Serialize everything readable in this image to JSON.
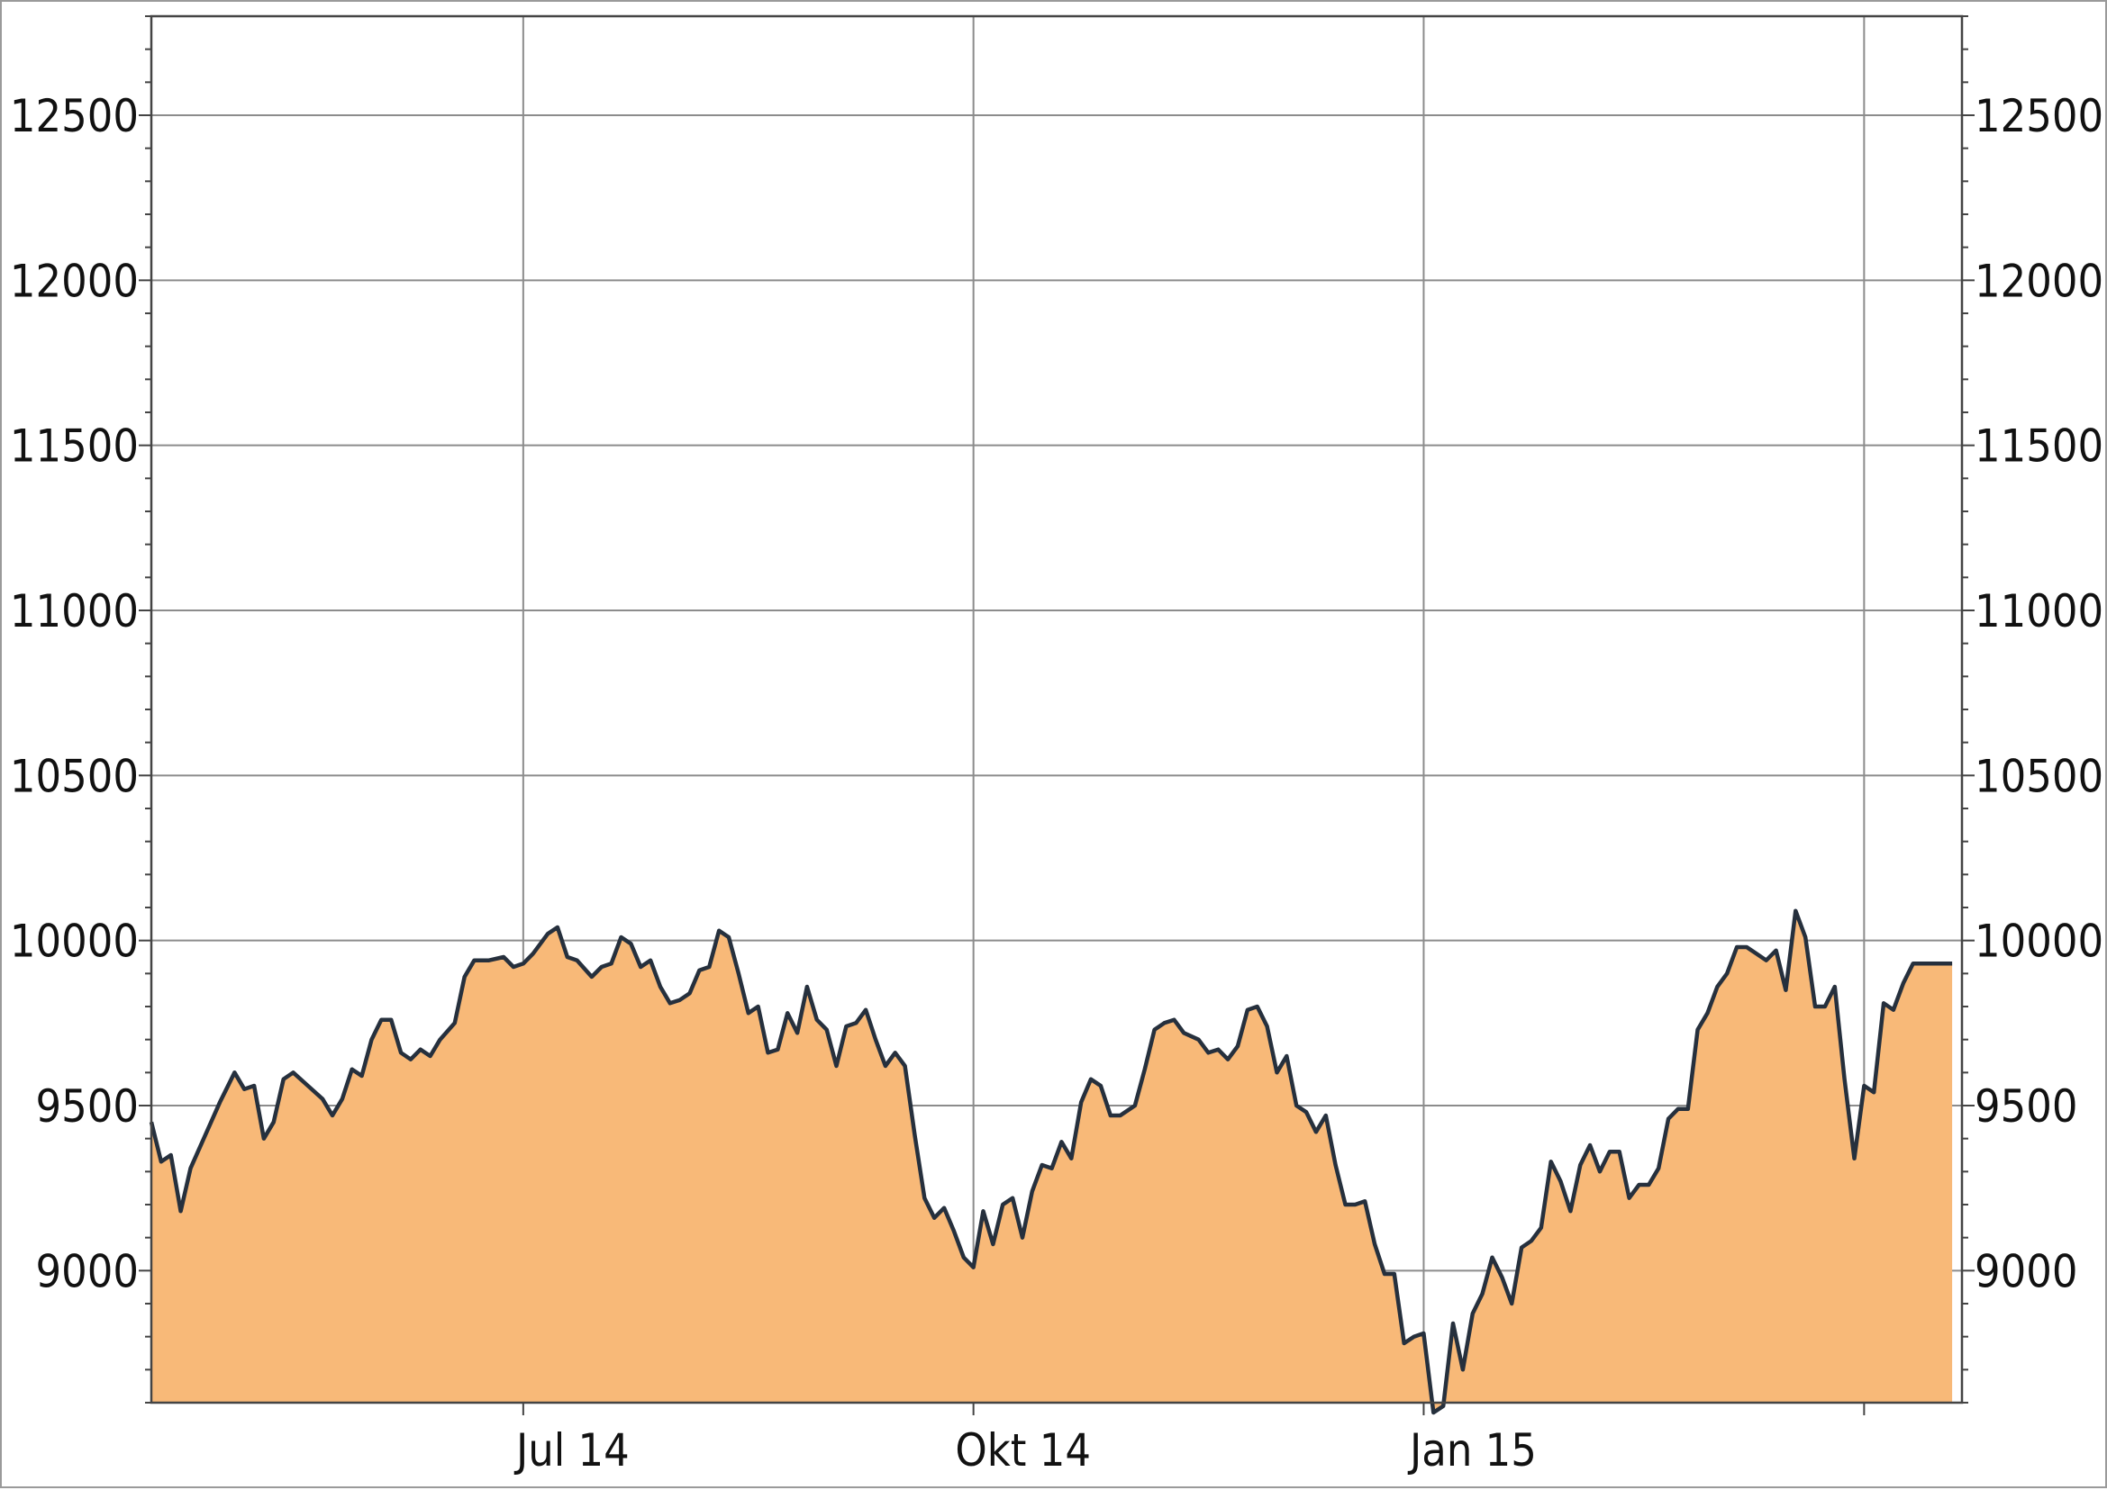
{
  "chart_data": {
    "type": "area",
    "title": "",
    "xlabel": "",
    "ylabel": "",
    "ylim": [
      8600,
      12800
    ],
    "y_ticks": [
      9000,
      9500,
      10000,
      10500,
      11000,
      11500,
      12000,
      12500
    ],
    "y_tick_labels": [
      "9000",
      "9500",
      "10000",
      "10500",
      "11000",
      "11500",
      "12000",
      "12500"
    ],
    "x_ticks": [
      {
        "date": "2014-07-01",
        "label": "Jul 14"
      },
      {
        "date": "2014-10-01",
        "label": "Okt 14"
      },
      {
        "date": "2015-01-01",
        "label": "Jan 15"
      },
      {
        "date": "2015-04-01",
        "label": ""
      }
    ],
    "xlim": [
      "2014-04-16",
      "2015-04-21"
    ],
    "grid": true,
    "colors": {
      "fill": "#f8b978",
      "line": "#26303d",
      "grid": "#8c8c8c",
      "axis": "#444444"
    },
    "series": [
      {
        "points": [
          [
            "2014-04-16",
            9450
          ],
          [
            "2014-04-18",
            9330
          ],
          [
            "2014-04-20",
            9350
          ],
          [
            "2014-04-22",
            9180
          ],
          [
            "2014-04-24",
            9310
          ],
          [
            "2014-04-27",
            9410
          ],
          [
            "2014-04-30",
            9510
          ],
          [
            "2014-05-03",
            9600
          ],
          [
            "2014-05-05",
            9550
          ],
          [
            "2014-05-07",
            9560
          ],
          [
            "2014-05-09",
            9400
          ],
          [
            "2014-05-11",
            9450
          ],
          [
            "2014-05-13",
            9580
          ],
          [
            "2014-05-15",
            9600
          ],
          [
            "2014-05-18",
            9560
          ],
          [
            "2014-05-21",
            9520
          ],
          [
            "2014-05-23",
            9470
          ],
          [
            "2014-05-25",
            9520
          ],
          [
            "2014-05-27",
            9610
          ],
          [
            "2014-05-29",
            9590
          ],
          [
            "2014-05-31",
            9700
          ],
          [
            "2014-06-02",
            9760
          ],
          [
            "2014-06-04",
            9760
          ],
          [
            "2014-06-06",
            9660
          ],
          [
            "2014-06-08",
            9640
          ],
          [
            "2014-06-10",
            9670
          ],
          [
            "2014-06-12",
            9650
          ],
          [
            "2014-06-14",
            9700
          ],
          [
            "2014-06-17",
            9750
          ],
          [
            "2014-06-19",
            9890
          ],
          [
            "2014-06-21",
            9940
          ],
          [
            "2014-06-24",
            9940
          ],
          [
            "2014-06-27",
            9950
          ],
          [
            "2014-06-29",
            9920
          ],
          [
            "2014-07-01",
            9930
          ],
          [
            "2014-07-03",
            9960
          ],
          [
            "2014-07-06",
            10020
          ],
          [
            "2014-07-08",
            10040
          ],
          [
            "2014-07-10",
            9950
          ],
          [
            "2014-07-12",
            9940
          ],
          [
            "2014-07-15",
            9890
          ],
          [
            "2014-07-17",
            9920
          ],
          [
            "2014-07-19",
            9930
          ],
          [
            "2014-07-21",
            10010
          ],
          [
            "2014-07-23",
            9990
          ],
          [
            "2014-07-25",
            9920
          ],
          [
            "2014-07-27",
            9940
          ],
          [
            "2014-07-29",
            9860
          ],
          [
            "2014-07-31",
            9810
          ],
          [
            "2014-08-02",
            9820
          ],
          [
            "2014-08-04",
            9840
          ],
          [
            "2014-08-06",
            9910
          ],
          [
            "2014-08-08",
            9920
          ],
          [
            "2014-08-10",
            10030
          ],
          [
            "2014-08-12",
            10010
          ],
          [
            "2014-08-14",
            9900
          ],
          [
            "2014-08-16",
            9780
          ],
          [
            "2014-08-18",
            9800
          ],
          [
            "2014-08-20",
            9660
          ],
          [
            "2014-08-22",
            9670
          ],
          [
            "2014-08-24",
            9780
          ],
          [
            "2014-08-26",
            9720
          ],
          [
            "2014-08-28",
            9860
          ],
          [
            "2014-08-30",
            9760
          ],
          [
            "2014-09-01",
            9730
          ],
          [
            "2014-09-03",
            9620
          ],
          [
            "2014-09-05",
            9740
          ],
          [
            "2014-09-07",
            9750
          ],
          [
            "2014-09-09",
            9790
          ],
          [
            "2014-09-11",
            9700
          ],
          [
            "2014-09-13",
            9620
          ],
          [
            "2014-09-15",
            9660
          ],
          [
            "2014-09-17",
            9620
          ],
          [
            "2014-09-19",
            9410
          ],
          [
            "2014-09-21",
            9220
          ],
          [
            "2014-09-23",
            9160
          ],
          [
            "2014-09-25",
            9190
          ],
          [
            "2014-09-27",
            9120
          ],
          [
            "2014-09-29",
            9040
          ],
          [
            "2014-10-01",
            9010
          ],
          [
            "2014-10-03",
            9180
          ],
          [
            "2014-10-05",
            9080
          ],
          [
            "2014-10-07",
            9200
          ],
          [
            "2014-10-09",
            9220
          ],
          [
            "2014-10-11",
            9100
          ],
          [
            "2014-10-13",
            9240
          ],
          [
            "2014-10-15",
            9320
          ],
          [
            "2014-10-17",
            9310
          ],
          [
            "2014-10-19",
            9390
          ],
          [
            "2014-10-21",
            9340
          ],
          [
            "2014-10-23",
            9510
          ],
          [
            "2014-10-25",
            9580
          ],
          [
            "2014-10-27",
            9560
          ],
          [
            "2014-10-29",
            9470
          ],
          [
            "2014-10-31",
            9470
          ],
          [
            "2014-11-03",
            9500
          ],
          [
            "2014-11-05",
            9610
          ],
          [
            "2014-11-07",
            9730
          ],
          [
            "2014-11-09",
            9750
          ],
          [
            "2014-11-11",
            9760
          ],
          [
            "2014-11-13",
            9720
          ],
          [
            "2014-11-16",
            9700
          ],
          [
            "2014-11-18",
            9660
          ],
          [
            "2014-11-20",
            9670
          ],
          [
            "2014-11-22",
            9640
          ],
          [
            "2014-11-24",
            9680
          ],
          [
            "2014-11-26",
            9790
          ],
          [
            "2014-11-28",
            9800
          ],
          [
            "2014-11-30",
            9740
          ],
          [
            "2014-12-02",
            9600
          ],
          [
            "2014-12-04",
            9650
          ],
          [
            "2014-12-06",
            9500
          ],
          [
            "2014-12-08",
            9480
          ],
          [
            "2014-12-10",
            9420
          ],
          [
            "2014-12-12",
            9470
          ],
          [
            "2014-12-14",
            9320
          ],
          [
            "2014-12-16",
            9200
          ],
          [
            "2014-12-18",
            9200
          ],
          [
            "2014-12-20",
            9210
          ],
          [
            "2014-12-22",
            9080
          ],
          [
            "2014-12-24",
            8990
          ],
          [
            "2014-12-26",
            8990
          ],
          [
            "2014-12-28",
            8780
          ],
          [
            "2014-12-30",
            8800
          ],
          [
            "2015-01-01",
            8810
          ],
          [
            "2015-01-03",
            8570
          ],
          [
            "2015-01-05",
            8590
          ],
          [
            "2015-01-07",
            8840
          ],
          [
            "2015-01-09",
            8700
          ],
          [
            "2015-01-11",
            8870
          ],
          [
            "2015-01-13",
            8930
          ],
          [
            "2015-01-15",
            9040
          ],
          [
            "2015-01-17",
            8980
          ],
          [
            "2015-01-19",
            8900
          ],
          [
            "2015-01-21",
            9070
          ],
          [
            "2015-01-23",
            9090
          ],
          [
            "2015-01-25",
            9130
          ],
          [
            "2015-01-27",
            9330
          ],
          [
            "2015-01-29",
            9270
          ],
          [
            "2015-01-31",
            9180
          ],
          [
            "2015-02-02",
            9320
          ],
          [
            "2015-02-04",
            9380
          ],
          [
            "2015-02-06",
            9300
          ],
          [
            "2015-02-08",
            9360
          ],
          [
            "2015-02-10",
            9360
          ],
          [
            "2015-02-12",
            9220
          ],
          [
            "2015-02-14",
            9260
          ],
          [
            "2015-02-16",
            9260
          ],
          [
            "2015-02-18",
            9310
          ],
          [
            "2015-02-20",
            9460
          ],
          [
            "2015-02-22",
            9490
          ],
          [
            "2015-02-24",
            9490
          ],
          [
            "2015-02-26",
            9730
          ],
          [
            "2015-02-28",
            9780
          ],
          [
            "2015-03-02",
            9860
          ],
          [
            "2015-03-04",
            9900
          ],
          [
            "2015-03-06",
            9980
          ],
          [
            "2015-03-08",
            9980
          ],
          [
            "2015-03-10",
            9960
          ],
          [
            "2015-03-12",
            9940
          ],
          [
            "2015-03-14",
            9970
          ],
          [
            "2015-03-16",
            9850
          ],
          [
            "2015-03-18",
            10090
          ],
          [
            "2015-03-20",
            10010
          ],
          [
            "2015-03-22",
            9800
          ],
          [
            "2015-03-24",
            9800
          ],
          [
            "2015-03-26",
            9860
          ],
          [
            "2015-03-28",
            9580
          ],
          [
            "2015-03-30",
            9340
          ],
          [
            "2015-04-01",
            9560
          ],
          [
            "2015-04-03",
            9540
          ],
          [
            "2015-04-05",
            9810
          ],
          [
            "2015-04-07",
            9790
          ],
          [
            "2015-04-09",
            9870
          ],
          [
            "2015-04-11",
            9930
          ],
          [
            "2015-04-13",
            9930
          ],
          [
            "2015-04-15",
            9930
          ],
          [
            "2015-04-17",
            9930
          ],
          [
            "2015-04-19",
            9930
          ]
        ]
      }
    ]
  }
}
